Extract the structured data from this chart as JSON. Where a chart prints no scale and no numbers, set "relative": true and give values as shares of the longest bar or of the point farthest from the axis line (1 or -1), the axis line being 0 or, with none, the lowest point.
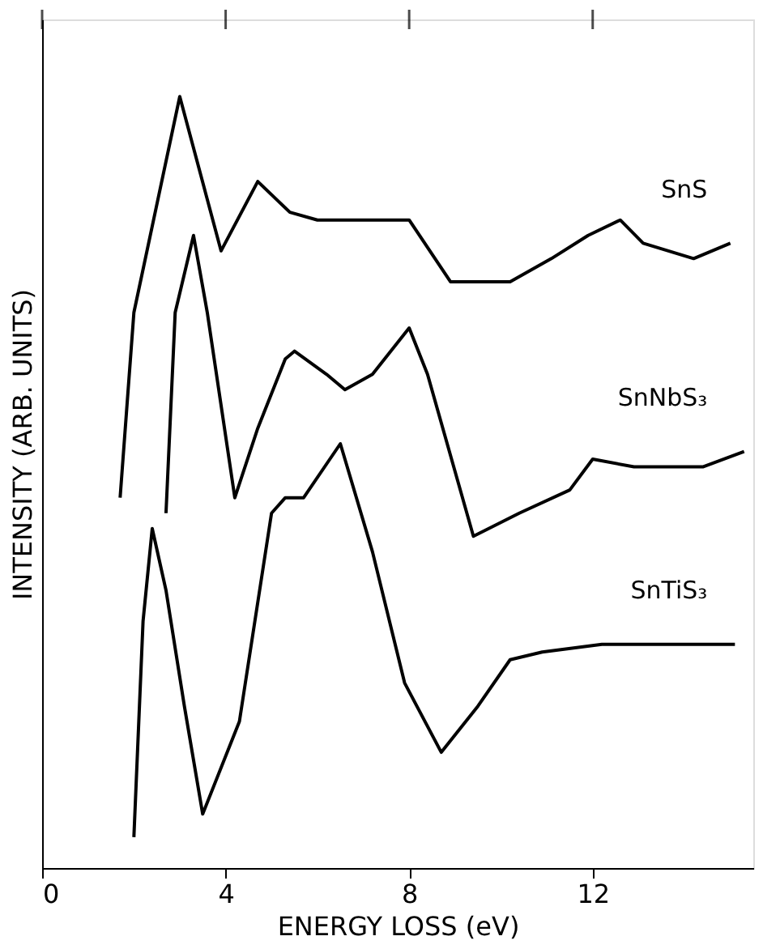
{
  "chart_data": {
    "type": "line",
    "xlabel": "ENERGY  LOSS (eV)",
    "ylabel": "INTENSITY (ARB. UNITS)",
    "relative": true,
    "xlim": [
      0,
      15.5
    ],
    "xticks": [
      0,
      4,
      8,
      12
    ],
    "series": [
      {
        "name": "SnS",
        "color": "#000000",
        "x": [
          1.7,
          2.0,
          3.0,
          3.9,
          4.7,
          5.4,
          6.0,
          6.9,
          8.0,
          8.9,
          10.2,
          11.1,
          11.9,
          12.6,
          13.1,
          14.2,
          15.0
        ],
        "values": [
          0.48,
          0.72,
          1.0,
          0.8,
          0.89,
          0.85,
          0.84,
          0.84,
          0.84,
          0.76,
          0.76,
          0.79,
          0.82,
          0.84,
          0.81,
          0.79,
          0.81
        ]
      },
      {
        "name": "SnNbS₃",
        "color": "#000000",
        "x": [
          2.7,
          2.9,
          3.3,
          3.6,
          4.2,
          4.7,
          5.3,
          5.5,
          6.2,
          6.6,
          7.2,
          8.0,
          8.4,
          9.4,
          10.4,
          11.5,
          12.0,
          12.9,
          14.4,
          15.3
        ],
        "values": [
          0.46,
          0.72,
          0.82,
          0.72,
          0.48,
          0.57,
          0.66,
          0.67,
          0.64,
          0.62,
          0.64,
          0.7,
          0.64,
          0.43,
          0.46,
          0.49,
          0.53,
          0.52,
          0.52,
          0.54
        ]
      },
      {
        "name": "SnTiS₃",
        "color": "#000000",
        "x": [
          2.0,
          2.2,
          2.4,
          2.7,
          3.1,
          3.5,
          4.3,
          5.0,
          5.3,
          5.7,
          6.5,
          7.2,
          7.9,
          8.7,
          9.5,
          10.2,
          10.9,
          12.2,
          12.9,
          13.7,
          15.1
        ],
        "values": [
          0.04,
          0.32,
          0.44,
          0.36,
          0.21,
          0.07,
          0.19,
          0.46,
          0.48,
          0.48,
          0.55,
          0.41,
          0.24,
          0.15,
          0.21,
          0.27,
          0.28,
          0.29,
          0.29,
          0.29,
          0.29
        ]
      }
    ]
  }
}
